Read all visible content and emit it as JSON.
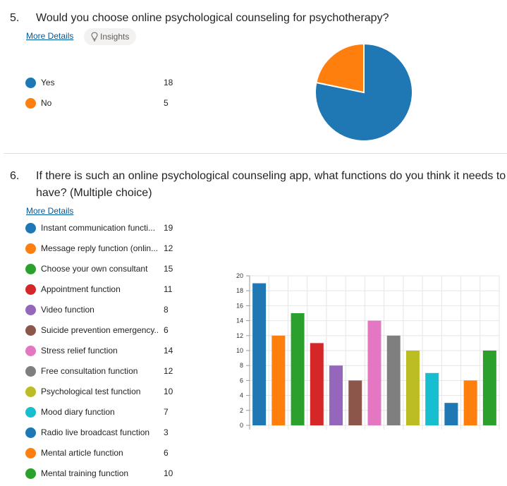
{
  "q5": {
    "number": "5.",
    "title": "Would you choose online psychological counseling for psychotherapy?",
    "more_details": "More Details",
    "insights": "Insights",
    "legend": [
      {
        "label": "Yes",
        "count": "18",
        "color": "#1f77b4"
      },
      {
        "label": "No",
        "count": "5",
        "color": "#ff7f0e"
      }
    ]
  },
  "q6": {
    "number": "6.",
    "title_line1": "If there is such an online psychological counseling app, what functions do you think it needs to",
    "title_line2": "have? (Multiple choice)",
    "more_details": "More Details",
    "legend": [
      {
        "label": "Instant communication functi...",
        "count": "19",
        "color": "#1f77b4"
      },
      {
        "label": "Message reply function (onlin...",
        "count": "12",
        "color": "#ff7f0e"
      },
      {
        "label": "Choose your own consultant",
        "count": "15",
        "color": "#2ca02c"
      },
      {
        "label": "Appointment function",
        "count": "11",
        "color": "#d62728"
      },
      {
        "label": "Video function",
        "count": "8",
        "color": "#9467bd"
      },
      {
        "label": "Suicide prevention emergency...",
        "count": "6",
        "color": "#8c564b"
      },
      {
        "label": "Stress relief function",
        "count": "14",
        "color": "#e377c2"
      },
      {
        "label": "Free consultation function",
        "count": "12",
        "color": "#7f7f7f"
      },
      {
        "label": "Psychological test function",
        "count": "10",
        "color": "#bcbd22"
      },
      {
        "label": "Mood diary function",
        "count": "7",
        "color": "#17becf"
      },
      {
        "label": "Radio live broadcast function",
        "count": "3",
        "color": "#1f77b4"
      },
      {
        "label": "Mental article function",
        "count": "6",
        "color": "#ff7f0e"
      },
      {
        "label": "Mental training function",
        "count": "10",
        "color": "#2ca02c"
      }
    ]
  },
  "chart_data": [
    {
      "type": "pie",
      "categories": [
        "Yes",
        "No"
      ],
      "values": [
        18,
        5
      ],
      "colors": [
        "#1f77b4",
        "#ff7f0e"
      ]
    },
    {
      "type": "bar",
      "categories": [
        "Instant communication functi...",
        "Message reply function (onlin...",
        "Choose your own consultant",
        "Appointment function",
        "Video function",
        "Suicide prevention emergency...",
        "Stress relief function",
        "Free consultation function",
        "Psychological test function",
        "Mood diary function",
        "Radio live broadcast function",
        "Mental article function",
        "Mental training function"
      ],
      "values": [
        19,
        12,
        15,
        11,
        8,
        6,
        14,
        12,
        10,
        7,
        3,
        6,
        10
      ],
      "colors": [
        "#1f77b4",
        "#ff7f0e",
        "#2ca02c",
        "#d62728",
        "#9467bd",
        "#8c564b",
        "#e377c2",
        "#7f7f7f",
        "#bcbd22",
        "#17becf",
        "#1f77b4",
        "#ff7f0e",
        "#2ca02c"
      ],
      "ylim": [
        0,
        20
      ],
      "yticks": [
        0,
        2,
        4,
        6,
        8,
        10,
        12,
        14,
        16,
        18,
        20
      ],
      "grid": true
    }
  ]
}
